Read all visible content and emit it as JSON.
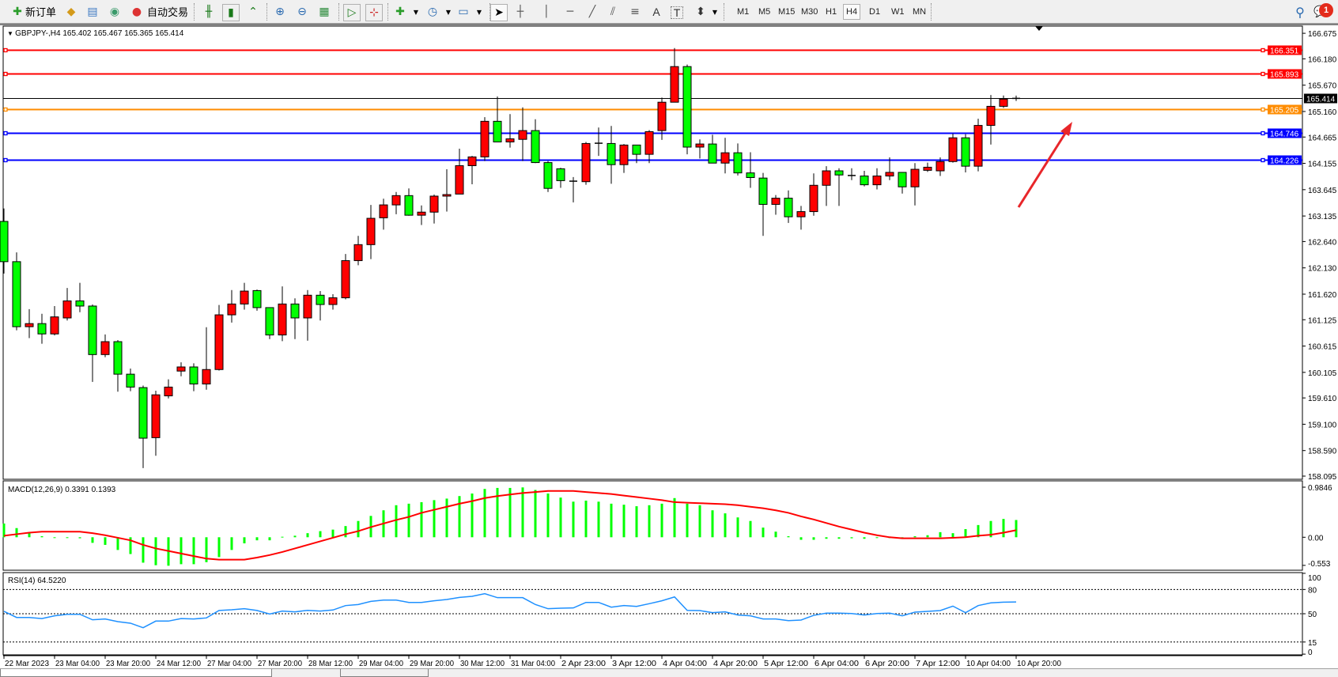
{
  "toolbar": {
    "new_order_label": "新订单",
    "auto_trading_label": "自动交易",
    "timeframes": [
      "M1",
      "M5",
      "M15",
      "M30",
      "H1",
      "H4",
      "D1",
      "W1",
      "MN"
    ],
    "active_timeframe": "H4",
    "notification_count": "1",
    "icons": [
      "new-order-icon",
      "market-watch-icon",
      "navigator-icon",
      "signals-icon",
      "auto-trading-icon",
      "bar-chart-icon",
      "candlestick-icon",
      "line-chart-icon",
      "zoom-in-icon",
      "zoom-out-icon",
      "tile-windows-icon",
      "auto-scroll-icon",
      "chart-shift-icon",
      "indicators-icon",
      "periods-icon",
      "templates-icon",
      "cursor-icon",
      "crosshair-icon",
      "vertical-line-icon",
      "horizontal-line-icon",
      "trendline-icon",
      "equidistant-channel-icon",
      "fibonacci-icon",
      "text-icon",
      "text-label-icon",
      "arrows-icon",
      "search-icon",
      "notifications-icon"
    ],
    "text_tool_label": "A",
    "label_tool_label": "T"
  },
  "chart": {
    "header": "GBPJPY-,H4  165.402 165.467 165.365 165.414",
    "symbol": "GBPJPY-",
    "timeframe": "H4",
    "ohlc_current": {
      "open": 165.402,
      "high": 165.467,
      "low": 165.365,
      "close": 165.414
    },
    "colors": {
      "bull": "#ff0000",
      "bear": "#00ff00",
      "outline": "#000000",
      "macd_hist": "#00ff00",
      "macd_signal": "#ff0000",
      "rsi": "#1e90ff",
      "arrow": "#e8262a"
    },
    "price_ticks": [
      "166.675",
      "166.180",
      "165.670",
      "165.160",
      "164.665",
      "164.155",
      "163.645",
      "163.135",
      "162.640",
      "162.130",
      "161.620",
      "161.125",
      "160.615",
      "160.105",
      "159.610",
      "159.100",
      "158.590",
      "158.095"
    ],
    "price_range": [
      158.095,
      166.675
    ],
    "horizontal_lines": [
      {
        "price": "166.351",
        "color": "#ff0000"
      },
      {
        "price": "165.893",
        "color": "#ff0000"
      },
      {
        "price": "165.205",
        "color": "#ff8c00"
      },
      {
        "price": "164.746",
        "color": "#0000ff"
      },
      {
        "price": "164.226",
        "color": "#0000ff"
      }
    ],
    "bid_line": {
      "price": "165.414",
      "color": "#000000"
    },
    "time_labels": [
      "22 Mar 2023",
      "23 Mar 04:00",
      "23 Mar 20:00",
      "24 Mar 12:00",
      "27 Mar 04:00",
      "27 Mar 20:00",
      "28 Mar 12:00",
      "29 Mar 04:00",
      "29 Mar 20:00",
      "30 Mar 12:00",
      "31 Mar 04:00",
      "2 Apr 23:00",
      "3 Apr 12:00",
      "4 Apr 04:00",
      "4 Apr 20:00",
      "5 Apr 12:00",
      "6 Apr 04:00",
      "6 Apr 20:00",
      "7 Apr 12:00",
      "10 Apr 04:00",
      "10 Apr 20:00"
    ]
  },
  "chart_data": [
    {
      "type": "candlestick",
      "title": "GBPJPY-,H4",
      "ylim": [
        158.095,
        166.675
      ],
      "open": [
        163.03,
        162.25,
        160.99,
        161.05,
        160.85,
        161.16,
        161.49,
        161.39,
        160.45,
        160.7,
        160.07,
        159.81,
        158.84,
        159.65,
        160.13,
        160.21,
        159.88,
        160.16,
        161.22,
        161.43,
        161.69,
        161.36,
        160.83,
        161.43,
        161.16,
        161.6,
        161.42,
        161.55,
        162.27,
        162.58,
        163.1,
        163.35,
        163.53,
        163.15,
        163.21,
        163.52,
        163.56,
        164.11,
        164.28,
        164.97,
        164.57,
        164.62,
        164.79,
        164.17,
        164.05,
        163.81,
        163.8,
        164.54,
        164.54,
        164.13,
        164.51,
        164.33,
        164.79,
        165.34,
        166.03,
        164.47,
        164.53,
        164.16,
        164.36,
        163.97,
        163.87,
        163.36,
        163.48,
        163.12,
        163.22,
        163.73,
        164.01,
        163.92,
        163.91,
        163.74,
        163.91,
        163.98,
        163.7,
        164.02,
        164.01,
        164.19,
        164.65,
        164.1,
        164.89,
        165.26,
        165.402
      ],
      "high": [
        163.28,
        162.43,
        161.33,
        161.24,
        161.39,
        161.74,
        161.84,
        161.42,
        160.84,
        160.73,
        160.18,
        159.85,
        159.75,
        159.97,
        160.3,
        160.28,
        160.98,
        161.41,
        161.7,
        161.84,
        161.71,
        161.36,
        161.77,
        161.54,
        161.7,
        161.68,
        161.62,
        162.4,
        162.75,
        163.35,
        163.47,
        163.6,
        163.67,
        163.34,
        163.55,
        164.04,
        164.44,
        164.3,
        165.05,
        165.45,
        165.11,
        165.24,
        165.01,
        164.2,
        164.07,
        163.89,
        164.57,
        164.85,
        164.88,
        164.53,
        164.51,
        164.8,
        165.43,
        166.39,
        166.07,
        164.62,
        164.71,
        164.65,
        164.54,
        164.37,
        163.97,
        163.54,
        163.63,
        163.33,
        163.96,
        164.1,
        164.06,
        164.06,
        164.01,
        164.06,
        164.27,
        163.98,
        164.16,
        164.17,
        164.27,
        164.73,
        164.72,
        165.02,
        165.48,
        165.47,
        165.467
      ],
      "low": [
        162.02,
        160.92,
        160.77,
        160.66,
        160.82,
        161.11,
        161.27,
        159.92,
        160.4,
        159.73,
        159.74,
        158.25,
        158.49,
        159.6,
        160.03,
        159.74,
        159.77,
        160.14,
        161.07,
        161.32,
        161.3,
        160.75,
        160.71,
        160.75,
        160.72,
        161.11,
        161.32,
        161.52,
        162.18,
        162.3,
        162.87,
        163.17,
        163.14,
        162.96,
        162.99,
        163.22,
        163.56,
        163.75,
        164.2,
        164.57,
        164.46,
        164.2,
        164.16,
        163.6,
        163.68,
        163.4,
        163.74,
        164.3,
        163.76,
        163.97,
        164.16,
        164.16,
        164.61,
        165.34,
        164.33,
        164.25,
        164.16,
        163.96,
        163.92,
        163.68,
        162.75,
        163.16,
        163.0,
        162.87,
        163.14,
        163.33,
        163.33,
        163.83,
        163.71,
        163.65,
        163.83,
        163.57,
        163.34,
        163.99,
        163.91,
        164.17,
        163.98,
        164.0,
        164.52,
        165.23,
        165.365
      ],
      "close": [
        162.25,
        160.99,
        161.05,
        160.85,
        161.18,
        161.49,
        161.39,
        160.45,
        160.7,
        160.07,
        159.82,
        158.83,
        159.67,
        159.82,
        160.21,
        159.88,
        160.16,
        161.22,
        161.43,
        161.68,
        161.36,
        160.83,
        161.43,
        161.16,
        161.6,
        161.42,
        161.55,
        162.27,
        162.58,
        163.09,
        163.35,
        163.53,
        163.15,
        163.21,
        163.52,
        163.55,
        164.11,
        164.28,
        164.97,
        164.57,
        164.63,
        164.79,
        164.17,
        163.67,
        163.82,
        163.8,
        164.54,
        164.545,
        164.13,
        164.51,
        164.33,
        164.77,
        165.34,
        166.03,
        164.47,
        164.53,
        164.16,
        164.36,
        163.97,
        163.88,
        163.36,
        163.48,
        163.12,
        163.22,
        163.73,
        164.01,
        163.93,
        163.92,
        163.74,
        163.91,
        163.98,
        163.7,
        164.04,
        164.08,
        164.19,
        164.65,
        164.1,
        164.89,
        165.26,
        165.4,
        165.414
      ]
    },
    {
      "type": "bar+line",
      "title": "MACD(12,26,9) 0.3391 0.1393",
      "ticks": [
        "0.9846",
        "0.00",
        "-0.553"
      ],
      "ylim": [
        -0.553,
        0.9846
      ],
      "series": [
        {
          "values": [
            0.27,
            0.18,
            0.08,
            0.02,
            -0.01,
            -0.01,
            -0.02,
            -0.11,
            -0.15,
            -0.25,
            -0.33,
            -0.5,
            -0.55,
            -0.56,
            -0.53,
            -0.53,
            -0.49,
            -0.39,
            -0.25,
            -0.12,
            -0.06,
            -0.06,
            0.01,
            0.03,
            0.08,
            0.12,
            0.15,
            0.22,
            0.32,
            0.42,
            0.53,
            0.63,
            0.66,
            0.69,
            0.73,
            0.76,
            0.81,
            0.86,
            0.95,
            0.97,
            0.97,
            0.98,
            0.93,
            0.86,
            0.78,
            0.7,
            0.72,
            0.7,
            0.66,
            0.64,
            0.61,
            0.63,
            0.66,
            0.77,
            0.66,
            0.63,
            0.53,
            0.47,
            0.39,
            0.32,
            0.19,
            0.11,
            0.02,
            -0.05,
            -0.05,
            -0.03,
            -0.03,
            -0.02,
            -0.03,
            0.0,
            0.0,
            0.0,
            0.02,
            0.04,
            0.1,
            0.08,
            0.16,
            0.24,
            0.32,
            0.36,
            0.3391
          ]
        },
        {
          "values": [
            0.03,
            0.06,
            0.09,
            0.11,
            0.11,
            0.11,
            0.11,
            0.08,
            0.04,
            -0.01,
            -0.06,
            -0.15,
            -0.22,
            -0.27,
            -0.32,
            -0.37,
            -0.42,
            -0.44,
            -0.44,
            -0.44,
            -0.4,
            -0.35,
            -0.29,
            -0.22,
            -0.15,
            -0.08,
            -0.01,
            0.06,
            0.12,
            0.2,
            0.27,
            0.34,
            0.4,
            0.48,
            0.54,
            0.6,
            0.66,
            0.71,
            0.77,
            0.81,
            0.84,
            0.87,
            0.89,
            0.91,
            0.91,
            0.91,
            0.89,
            0.87,
            0.85,
            0.82,
            0.79,
            0.76,
            0.73,
            0.69,
            0.68,
            0.67,
            0.66,
            0.65,
            0.63,
            0.6,
            0.57,
            0.53,
            0.48,
            0.41,
            0.35,
            0.28,
            0.21,
            0.15,
            0.09,
            0.04,
            0.0,
            -0.02,
            -0.02,
            -0.02,
            -0.02,
            -0.01,
            0.0,
            0.03,
            0.05,
            0.09,
            0.1393
          ]
        }
      ]
    },
    {
      "type": "line",
      "title": "RSI(14) 64.5220",
      "ticks": [
        "100",
        "80",
        "50",
        "15",
        "0"
      ],
      "levels": [
        80,
        50,
        15
      ],
      "ylim": [
        0,
        100
      ],
      "values": [
        53,
        45.4,
        45.4,
        44,
        47.4,
        49.3,
        49.3,
        42.5,
        43.5,
        40.2,
        38.3,
        32.7,
        40.9,
        40.9,
        44,
        43.5,
        44.8,
        54,
        54.9,
        56.2,
        54,
        49.7,
        53.3,
        52.3,
        54.2,
        53.3,
        54.6,
        60.1,
        61.4,
        65.3,
        66.9,
        66.9,
        64,
        64,
        66,
        67.6,
        70.2,
        71.5,
        74.8,
        69.9,
        69.9,
        69.9,
        61.4,
        56.2,
        56.8,
        57.2,
        64,
        64,
        58.1,
        60.1,
        59.1,
        62.4,
        66,
        70.8,
        54.2,
        53.9,
        51.3,
        52.3,
        48.4,
        47.4,
        43.5,
        43.5,
        41.5,
        42.2,
        48,
        50.7,
        50.7,
        50.3,
        48.4,
        50.3,
        50.7,
        47.4,
        52,
        52.9,
        53.9,
        59.4,
        51.3,
        60.1,
        63.4,
        64.3,
        64.522
      ]
    }
  ]
}
